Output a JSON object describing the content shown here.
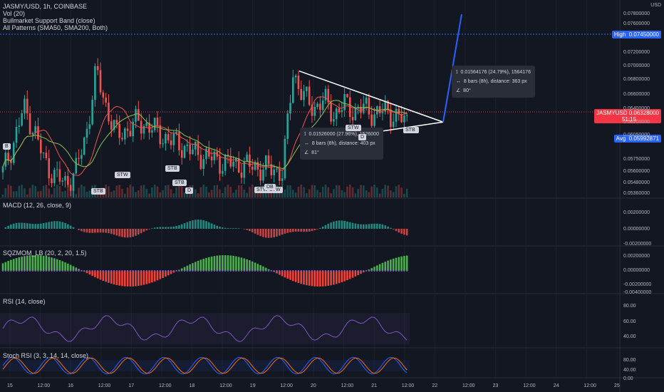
{
  "header": {
    "symbol": "JASMY/USD, 1h, COINBASE",
    "indicators": [
      "Vol (20)",
      "Bullmarket Support Band (close)",
      "All Patterns (SMA50, SMA200, Both)"
    ],
    "currency": "USD"
  },
  "price_axis": {
    "labels": [
      "0.07800000",
      "0.07600000",
      "0.07200000",
      "0.07000000",
      "0.06800000",
      "0.06600000",
      "0.06400000",
      "0.06200000",
      "0.06050000",
      "0.05750000",
      "0.05600000",
      "0.05480000",
      "0.05360000"
    ],
    "high_tag": {
      "name": "High",
      "value": "0.07450000",
      "color": "#2962ff"
    },
    "last_tag": {
      "name": "JASMYUSD",
      "value": "0.06328000",
      "time": "51:15",
      "color": "#f23645"
    },
    "avg_tag": {
      "name": "Avg",
      "value": "0.05992871",
      "color": "#2962ff"
    }
  },
  "panes": {
    "macd": {
      "label": "MACD (12, 26, close, 9)",
      "ticks": [
        "0.00200000",
        "0.00000000",
        "-0.00200000"
      ]
    },
    "sqz": {
      "label": "SQZMOM_LB (20, 2, 20, 1.5)",
      "ticks": [
        "0.00200000",
        "0.00000000",
        "-0.00200000",
        "-0.00400000"
      ]
    },
    "rsi": {
      "label": "RSI (14, close)",
      "ticks": [
        "80.00",
        "60.00",
        "40.00"
      ]
    },
    "stoch": {
      "label": "Stoch RSI (3, 3, 14, 14, close)",
      "ticks": [
        "80.00",
        "40.00",
        "0.00"
      ]
    }
  },
  "time_axis": [
    "15",
    "12:00",
    "16",
    "12:00",
    "17",
    "12:00",
    "18",
    "12:00",
    "19",
    "12:00",
    "20",
    "12:00",
    "21",
    "12:00",
    "22",
    "12:00",
    "23",
    "12:00",
    "24",
    "12:00",
    "25"
  ],
  "pattern_labels": [
    "STB",
    "STW",
    "STB",
    "STB",
    "B",
    "STW",
    "STW",
    "DB",
    "STW",
    "STW",
    "D",
    "STB",
    "D"
  ],
  "measure_tips": [
    {
      "line1": "0.01564176 (24.79%), 1564176",
      "line2": "8 bars (8h), distance: 363 px",
      "line3": "80°"
    },
    {
      "line1": "0.01526000 (27.96%), 1526000",
      "line2": "8 bars (8h), distance: 403 px",
      "line3": "81°"
    }
  ],
  "colors": {
    "up": "#26a69a",
    "down": "#ef5350",
    "bg": "#131722",
    "grid": "#1e222d",
    "projection": "#2962ff",
    "triangle": "#ffffff"
  },
  "chart_data": {
    "type": "candlestick",
    "title": "JASMY/USD, 1h, COINBASE",
    "x_range": [
      "15",
      "25"
    ],
    "ylim": [
      0.053,
      0.079
    ],
    "close_series": [
      0.056,
      0.06,
      0.065,
      0.062,
      0.0575,
      0.0555,
      0.0545,
      0.056,
      0.061,
      0.07,
      0.065,
      0.061,
      0.062,
      0.063,
      0.0625,
      0.0615,
      0.0605,
      0.06,
      0.059,
      0.0585,
      0.058,
      0.0575,
      0.0572,
      0.057,
      0.0568,
      0.0566,
      0.0564,
      0.056,
      0.07,
      0.0665,
      0.065,
      0.066,
      0.064,
      0.0655,
      0.0645,
      0.065,
      0.064,
      0.0648,
      0.0635,
      0.0633
    ],
    "projection_end": 0.078,
    "triangle": {
      "upper": [
        0.0701,
        0.063
      ],
      "lower": [
        0.0615,
        0.063
      ]
    }
  }
}
